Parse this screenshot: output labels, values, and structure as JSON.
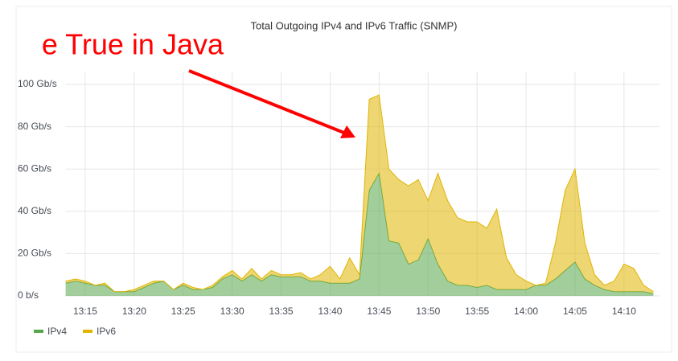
{
  "chart_data": {
    "type": "stacked_area",
    "title": "Total Outgoing IPv4 and IPv6 Traffic (SNMP)",
    "annotation": "e True in Java",
    "categories": [
      null,
      null,
      "13:15",
      null,
      null,
      null,
      null,
      "13:20",
      null,
      null,
      null,
      null,
      "13:25",
      null,
      null,
      null,
      null,
      "13:30",
      null,
      null,
      null,
      null,
      "13:35",
      null,
      null,
      null,
      null,
      "13:40",
      null,
      null,
      null,
      null,
      "13:45",
      null,
      null,
      null,
      null,
      "13:50",
      null,
      null,
      null,
      null,
      "13:55",
      null,
      null,
      null,
      null,
      "14:00",
      null,
      null,
      null,
      null,
      "14:05",
      null,
      null,
      null,
      null,
      "14:10",
      null,
      null,
      null
    ],
    "series": [
      {
        "name": "IPv4",
        "color": "#56a64b",
        "values": [
          6,
          7,
          6,
          5,
          5,
          2,
          2,
          2,
          4,
          6,
          7,
          3,
          5,
          3,
          3,
          4,
          8,
          10,
          7,
          10,
          7,
          10,
          9,
          9,
          9,
          7,
          7,
          6,
          6,
          6,
          8,
          50,
          58,
          26,
          25,
          15,
          17,
          27,
          15,
          7,
          5,
          5,
          4,
          5,
          3,
          3,
          3,
          3,
          5,
          5,
          8,
          12,
          16,
          8,
          5,
          3,
          2,
          2,
          2,
          2,
          1
        ]
      },
      {
        "name": "IPv6",
        "color": "#e0b400",
        "values": [
          1,
          1,
          1,
          0,
          1,
          0,
          0,
          1,
          1,
          1,
          0,
          0,
          1,
          1,
          0,
          1,
          1,
          2,
          1,
          3,
          1,
          2,
          1,
          1,
          2,
          1,
          3,
          8,
          2,
          12,
          2,
          43,
          37,
          34,
          30,
          37,
          38,
          18,
          43,
          38,
          32,
          30,
          31,
          27,
          38,
          15,
          7,
          4,
          0,
          1,
          17,
          38,
          44,
          17,
          5,
          2,
          5,
          13,
          11,
          3,
          1
        ]
      }
    ],
    "ylim": [
      0,
      106
    ],
    "yticks": [
      {
        "value": 0,
        "label": "0 b/s"
      },
      {
        "value": 20,
        "label": "20 Gb/s"
      },
      {
        "value": 40,
        "label": "40 Gb/s"
      },
      {
        "value": 60,
        "label": "60 Gb/s"
      },
      {
        "value": 80,
        "label": "80 Gb/s"
      },
      {
        "value": 100,
        "label": "100 Gb/s"
      }
    ],
    "grid": true,
    "legend": "bottom-left",
    "stacked": true
  }
}
